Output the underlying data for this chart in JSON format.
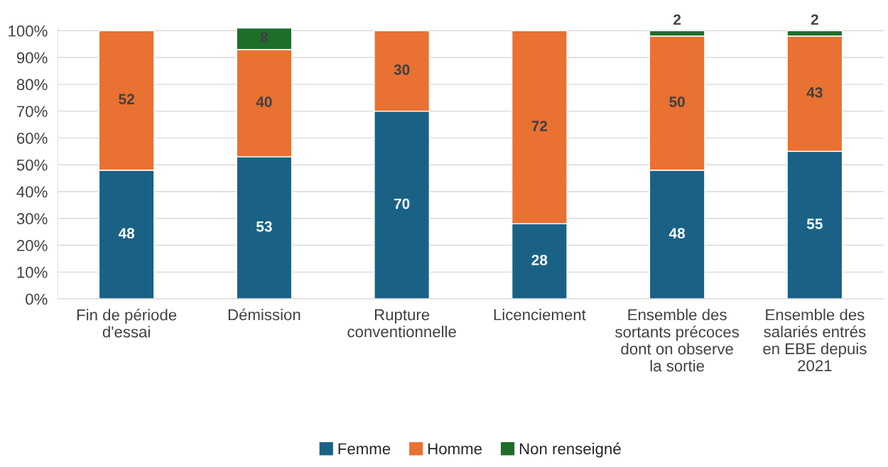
{
  "chart_data": {
    "type": "bar",
    "stacked": true,
    "categories": [
      "Fin de période d'essai",
      "Démission",
      "Rupture conventionnelle",
      "Licenciement",
      "Ensemble des sortants précoces dont on observe la sortie",
      "Ensemble des salariés entrés en EBE depuis 2021"
    ],
    "series": [
      {
        "name": "Femme",
        "color": "#1a6285",
        "values": [
          48,
          53,
          70,
          28,
          48,
          55
        ]
      },
      {
        "name": "Homme",
        "color": "#e97132",
        "values": [
          52,
          40,
          30,
          72,
          50,
          43
        ]
      },
      {
        "name": "Non renseigné",
        "color": "#1e6e2a",
        "values": [
          null,
          8,
          null,
          null,
          2,
          2
        ]
      }
    ],
    "ylim": [
      0,
      101
    ],
    "yticks": [
      {
        "value": 0,
        "label": "0%"
      },
      {
        "value": 10,
        "label": "10%"
      },
      {
        "value": 20,
        "label": "20%"
      },
      {
        "value": 30,
        "label": "30%"
      },
      {
        "value": 40,
        "label": "40%"
      },
      {
        "value": 50,
        "label": "50%"
      },
      {
        "value": 60,
        "label": "60%"
      },
      {
        "value": 70,
        "label": "70%"
      },
      {
        "value": 80,
        "label": "80%"
      },
      {
        "value": 90,
        "label": "90%"
      },
      {
        "value": 100,
        "label": "100%"
      }
    ],
    "grid": "y",
    "legend": "bottom",
    "data_labels": true
  }
}
